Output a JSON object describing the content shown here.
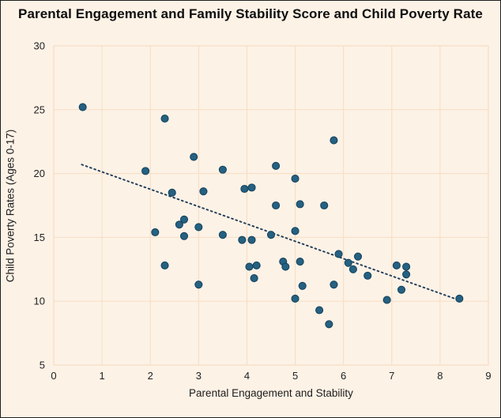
{
  "chart_data": {
    "type": "scatter",
    "title": "Parental Engagement and Family Stability Score and Child Poverty Rate",
    "xlabel": "Parental Engagement and Stability",
    "ylabel": "Child Poverty Rates (Ages 0-17)",
    "xlim": [
      0,
      9
    ],
    "ylim": [
      5,
      30
    ],
    "x_ticks": [
      0,
      1,
      2,
      3,
      4,
      5,
      6,
      7,
      8,
      9
    ],
    "y_ticks": [
      5,
      10,
      15,
      20,
      25,
      30
    ],
    "grid": true,
    "legend": false,
    "points": [
      [
        0.6,
        25.2
      ],
      [
        2.3,
        24.3
      ],
      [
        2.9,
        21.3
      ],
      [
        1.9,
        20.2
      ],
      [
        3.5,
        20.3
      ],
      [
        4.6,
        20.6
      ],
      [
        5.0,
        19.6
      ],
      [
        2.45,
        18.5
      ],
      [
        3.1,
        18.6
      ],
      [
        3.95,
        18.8
      ],
      [
        4.1,
        18.9
      ],
      [
        5.8,
        22.6
      ],
      [
        4.6,
        17.5
      ],
      [
        5.1,
        17.6
      ],
      [
        5.6,
        17.5
      ],
      [
        2.1,
        15.4
      ],
      [
        2.6,
        16.0
      ],
      [
        2.7,
        16.4
      ],
      [
        3.0,
        15.8
      ],
      [
        2.7,
        15.1
      ],
      [
        3.5,
        15.2
      ],
      [
        3.9,
        14.8
      ],
      [
        4.1,
        14.8
      ],
      [
        2.3,
        12.8
      ],
      [
        4.05,
        12.7
      ],
      [
        4.2,
        12.8
      ],
      [
        4.15,
        11.8
      ],
      [
        3.0,
        11.3
      ],
      [
        5.0,
        15.5
      ],
      [
        4.5,
        15.2
      ],
      [
        4.75,
        13.1
      ],
      [
        4.8,
        12.7
      ],
      [
        5.1,
        13.1
      ],
      [
        5.9,
        13.7
      ],
      [
        6.1,
        13.0
      ],
      [
        6.3,
        13.5
      ],
      [
        6.2,
        12.5
      ],
      [
        6.5,
        12.0
      ],
      [
        7.1,
        12.8
      ],
      [
        7.3,
        12.7
      ],
      [
        7.3,
        12.1
      ],
      [
        7.2,
        10.9
      ],
      [
        5.15,
        11.2
      ],
      [
        5.8,
        11.3
      ],
      [
        5.0,
        10.2
      ],
      [
        6.9,
        10.1
      ],
      [
        8.4,
        10.2
      ],
      [
        5.5,
        9.3
      ],
      [
        5.7,
        8.2
      ]
    ],
    "trendline": {
      "style": "dotted",
      "x1": 0.58,
      "y1": 20.7,
      "x2": 8.38,
      "y2": 10.1
    },
    "colors": {
      "background": "#fdf2e6",
      "grid": "#f6ddc3",
      "marker_fill": "#266181",
      "marker_stroke": "#15445f",
      "trend": "#1e3c58",
      "tick_text": "#222222",
      "title_text": "#0e0e0e"
    }
  }
}
